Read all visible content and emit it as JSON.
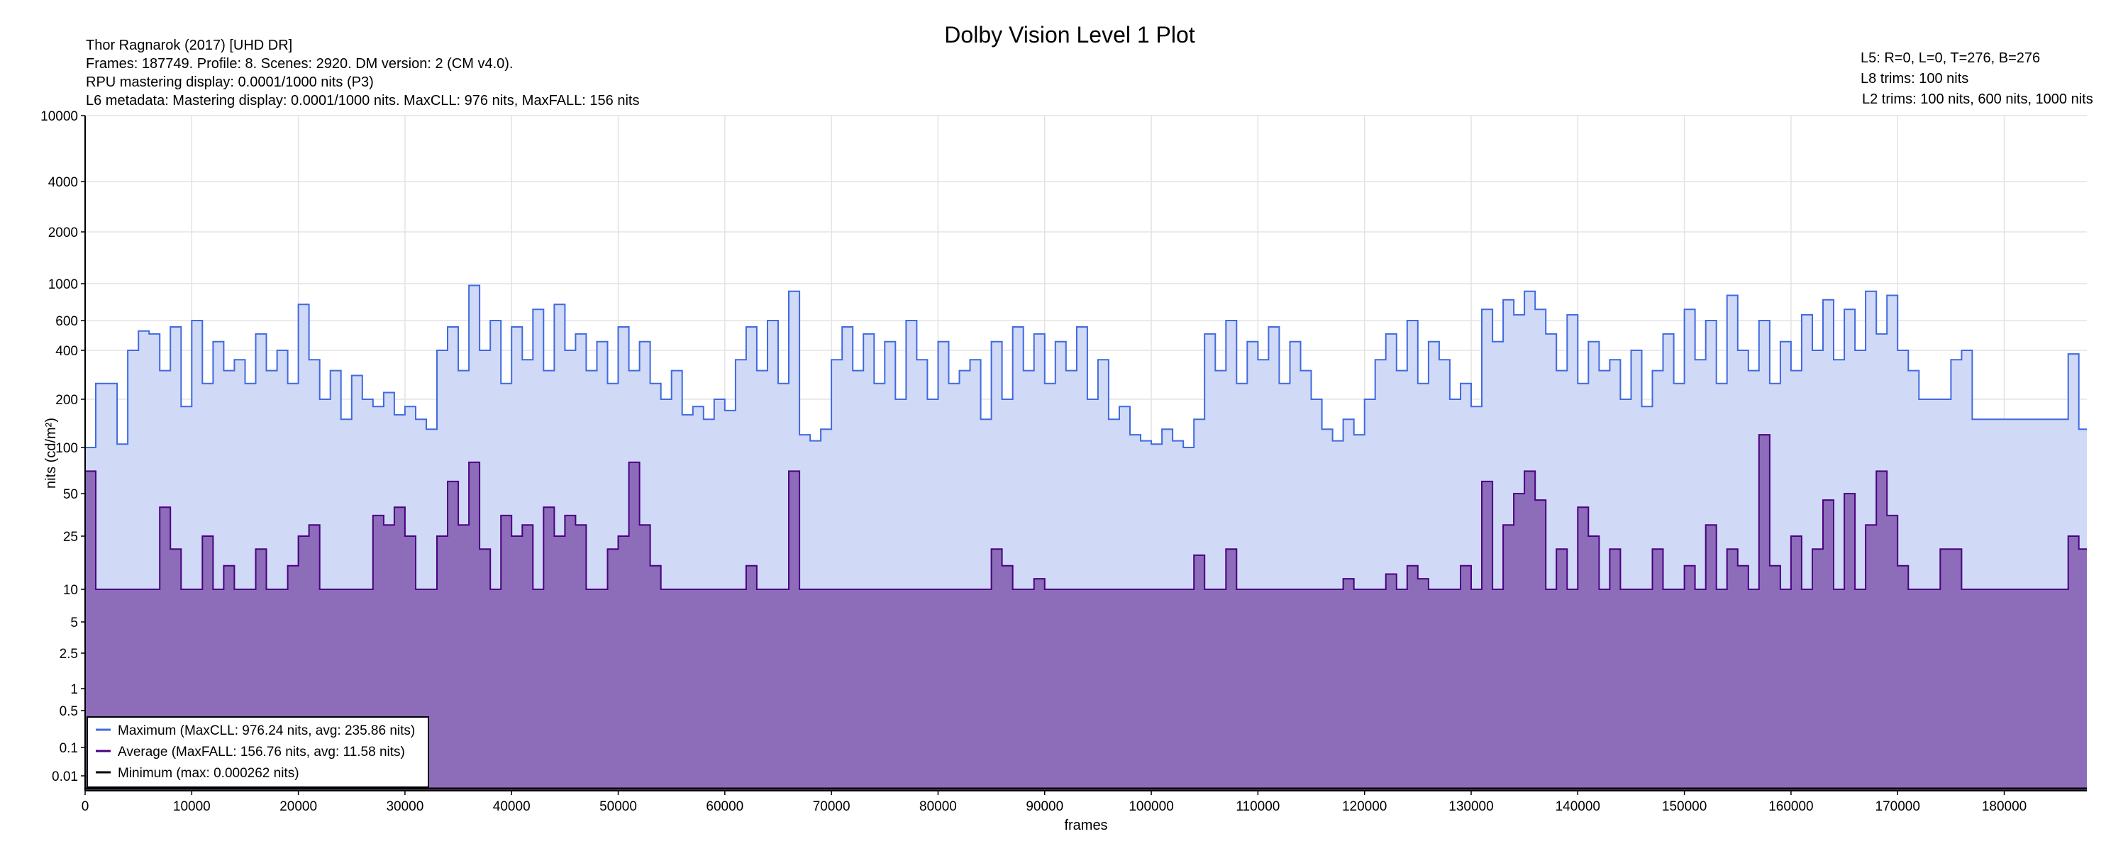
{
  "chart_data": {
    "type": "area",
    "title": "Dolby Vision Level 1 Plot",
    "info_left": [
      "Thor Ragnarok (2017) [UHD DR]",
      "Frames: 187749. Profile: 8. Scenes: 2920. DM version: 2 (CM v4.0).",
      "RPU mastering display: 0.0001/1000 nits  (P3)",
      "L6 metadata: Mastering display: 0.0001/1000 nits. MaxCLL: 976 nits, MaxFALL: 156 nits"
    ],
    "info_right": [
      "L5: R=0, L=0, T=276, B=276",
      "L8 trims: 100 nits",
      "L2 trims: 100 nits, 600 nits, 1000 nits"
    ],
    "xlabel": "frames",
    "ylabel": "nits (cd/m²)",
    "xlim": [
      0,
      187749
    ],
    "x_ticks": [
      0,
      10000,
      20000,
      30000,
      40000,
      50000,
      60000,
      70000,
      80000,
      90000,
      100000,
      110000,
      120000,
      130000,
      140000,
      150000,
      160000,
      170000,
      180000
    ],
    "y_ticks": [
      "10000",
      "4000",
      "2000",
      "1000",
      "600",
      "400",
      "200",
      "100",
      "50",
      "25",
      "10",
      "5",
      "2.5",
      "1",
      "0.5",
      "0.1",
      "0.01"
    ],
    "grid": true,
    "legend_position": "bottom-left",
    "bin_size_frames": 1000,
    "colors": {
      "max_line": "#4169e1",
      "max_fill": "#d0daf6",
      "avg_line": "#4b0082",
      "avg_fill": "#8d6cb9",
      "min_line": "#000000",
      "grid": "#e3e3e3"
    },
    "series": [
      {
        "name": "Maximum (MaxCLL: 976.24 nits, avg: 235.86 nits)",
        "key": "max",
        "values": [
          100,
          250,
          250,
          105,
          400,
          520,
          500,
          300,
          550,
          180,
          600,
          250,
          450,
          300,
          350,
          250,
          500,
          300,
          400,
          250,
          750,
          350,
          200,
          300,
          150,
          280,
          200,
          180,
          220,
          160,
          180,
          150,
          130,
          400,
          550,
          300,
          976,
          400,
          600,
          250,
          550,
          350,
          700,
          300,
          750,
          400,
          500,
          300,
          450,
          250,
          550,
          300,
          450,
          250,
          200,
          300,
          160,
          180,
          150,
          200,
          170,
          350,
          550,
          300,
          600,
          250,
          900,
          120,
          110,
          130,
          350,
          550,
          300,
          500,
          250,
          450,
          200,
          600,
          350,
          200,
          450,
          250,
          300,
          350,
          150,
          450,
          200,
          550,
          300,
          500,
          250,
          450,
          300,
          550,
          200,
          350,
          150,
          180,
          120,
          110,
          105,
          130,
          110,
          100,
          150,
          500,
          300,
          600,
          250,
          450,
          350,
          550,
          250,
          450,
          300,
          200,
          130,
          110,
          150,
          120,
          200,
          350,
          500,
          300,
          600,
          250,
          450,
          350,
          200,
          250,
          180,
          700,
          450,
          800,
          650,
          900,
          700,
          500,
          300,
          650,
          250,
          450,
          300,
          350,
          200,
          400,
          180,
          300,
          500,
          250,
          700,
          350,
          600,
          250,
          850,
          400,
          300,
          600,
          250,
          450,
          300,
          650,
          400,
          800,
          350,
          700,
          400,
          900,
          500,
          850,
          400,
          300,
          200,
          200,
          200,
          350,
          400,
          150,
          150,
          150,
          150,
          150,
          150,
          150,
          150,
          150,
          380,
          130
        ]
      },
      {
        "name": "Average (MaxFALL: 156.76 nits, avg: 11.58 nits)",
        "key": "avg",
        "values": [
          70,
          10,
          10,
          10,
          10,
          10,
          10,
          40,
          20,
          10,
          10,
          25,
          10,
          15,
          10,
          10,
          20,
          10,
          10,
          15,
          25,
          30,
          10,
          10,
          10,
          10,
          10,
          35,
          30,
          40,
          25,
          10,
          10,
          25,
          60,
          30,
          80,
          20,
          10,
          35,
          25,
          30,
          10,
          40,
          25,
          35,
          30,
          10,
          10,
          20,
          25,
          80,
          30,
          15,
          10,
          10,
          10,
          10,
          10,
          10,
          10,
          10,
          15,
          10,
          10,
          10,
          70,
          10,
          10,
          10,
          10,
          10,
          10,
          10,
          10,
          10,
          10,
          10,
          10,
          10,
          10,
          10,
          10,
          10,
          10,
          20,
          15,
          10,
          10,
          12,
          10,
          10,
          10,
          10,
          10,
          10,
          10,
          10,
          10,
          10,
          10,
          10,
          10,
          10,
          18,
          10,
          10,
          20,
          10,
          10,
          10,
          10,
          10,
          10,
          10,
          10,
          10,
          10,
          12,
          10,
          10,
          10,
          13,
          10,
          15,
          12,
          10,
          10,
          10,
          15,
          10,
          60,
          10,
          30,
          50,
          70,
          45,
          10,
          20,
          10,
          40,
          25,
          10,
          20,
          10,
          10,
          10,
          20,
          10,
          10,
          15,
          10,
          30,
          10,
          20,
          15,
          10,
          120,
          15,
          10,
          25,
          10,
          20,
          45,
          10,
          50,
          10,
          30,
          70,
          35,
          15,
          10,
          10,
          10,
          20,
          20,
          10,
          10,
          10,
          10,
          10,
          10,
          10,
          10,
          10,
          10,
          25,
          20
        ]
      },
      {
        "name": "Minimum (max: 0.000262 nits)",
        "key": "min",
        "constant": 0.0001
      }
    ]
  }
}
